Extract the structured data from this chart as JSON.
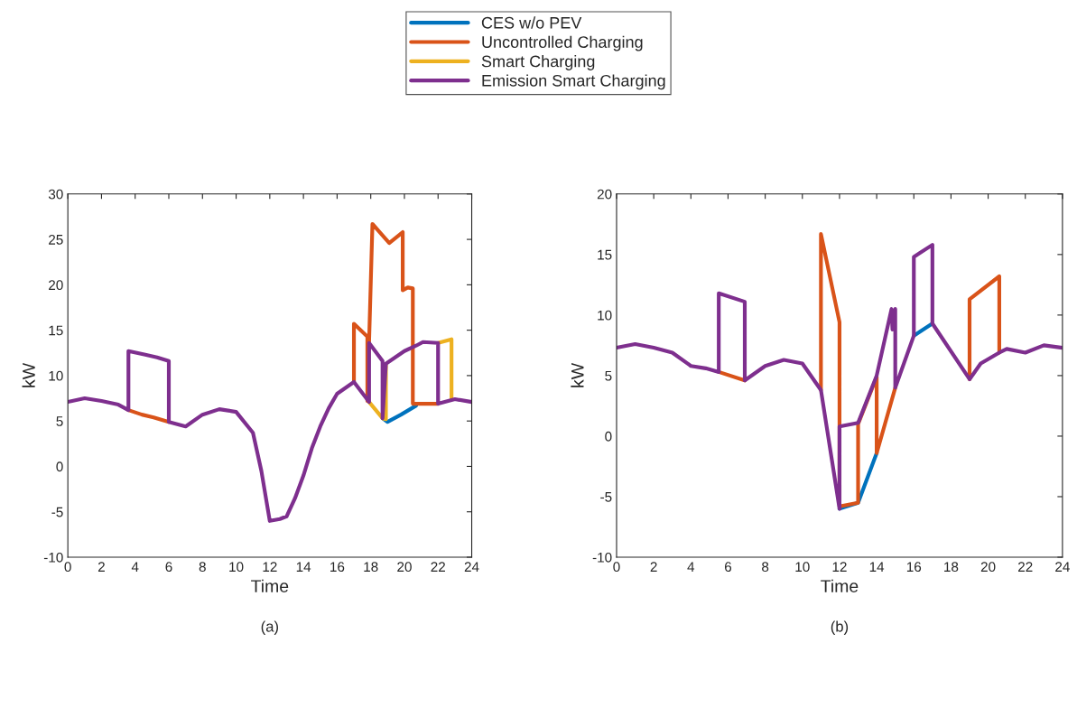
{
  "chart_data": [
    {
      "type": "line",
      "xlabel": "Time",
      "ylabel": "kW",
      "xlim": [
        0,
        24
      ],
      "xticks": [
        0,
        2,
        4,
        6,
        8,
        10,
        12,
        14,
        16,
        18,
        20,
        22,
        24
      ],
      "ylim": [
        -10,
        30
      ],
      "yticks": [
        -10,
        -5,
        0,
        5,
        10,
        15,
        20,
        25,
        30
      ],
      "legend": "top",
      "grid": false,
      "line_style": "solid",
      "annotations": [
        "(a)"
      ],
      "series": [
        {
          "name": "CES w/o PEV",
          "color": "#0072bd",
          "x": [
            18.7,
            19,
            19.8,
            20.7
          ],
          "values": [
            5.3,
            4.9,
            5.7,
            6.7
          ]
        },
        {
          "name": "Uncontrolled Charging",
          "color": "#d95319",
          "x": [
            3.6,
            4.4,
            5.1,
            6
          ],
          "values": [
            6.2,
            5.7,
            5.4,
            4.9
          ]
        },
        {
          "color": "#d95319",
          "x": [
            17,
            17,
            17.8,
            17.8,
            18.1,
            19.1,
            19.9,
            19.9,
            20.2,
            20.5,
            20.5,
            21,
            22
          ],
          "values": [
            9.3,
            15.7,
            14.3,
            7.2,
            26.7,
            24.6,
            25.8,
            19.4,
            19.7,
            19.6,
            6.9,
            6.9,
            6.9
          ]
        },
        {
          "name": "Smart Charging",
          "color": "#edb120",
          "x": [
            17.9,
            18.7,
            18.9,
            18.9
          ],
          "values": [
            7.1,
            5.3,
            5.2,
            11.3
          ]
        },
        {
          "color": "#edb120",
          "x": [
            22,
            22.8,
            22.8
          ],
          "values": [
            13.6,
            14.0,
            7.4
          ]
        },
        {
          "name": "Emission Smart Charging",
          "color": "#7e2f8e",
          "x": [
            0,
            1,
            2,
            3,
            3.6,
            3.6,
            4.6,
            5.3,
            6,
            6,
            7,
            8,
            9,
            10,
            11,
            11.5,
            12,
            12.6,
            13,
            13.5,
            14,
            14.5,
            15,
            15.5,
            16,
            17,
            17.9,
            17.9,
            18.7,
            18.7,
            18.9,
            20,
            20.7,
            21.1,
            22,
            22,
            22.2,
            23,
            24
          ],
          "values": [
            7.1,
            7.5,
            7.2,
            6.8,
            6.2,
            12.7,
            12.3,
            12.0,
            11.6,
            4.9,
            4.4,
            5.7,
            6.3,
            6.0,
            3.7,
            -0.5,
            -6.0,
            -5.8,
            -5.5,
            -3.5,
            -1.0,
            2.0,
            4.4,
            6.4,
            8.0,
            9.3,
            7.1,
            13.6,
            11.6,
            5.3,
            11.3,
            12.7,
            13.3,
            13.7,
            13.6,
            6.9,
            7.0,
            7.4,
            7.1
          ]
        }
      ]
    },
    {
      "type": "line",
      "xlabel": "Time",
      "ylabel": "kW",
      "xlim": [
        0,
        24
      ],
      "xticks": [
        0,
        2,
        4,
        6,
        8,
        10,
        12,
        14,
        16,
        18,
        20,
        22,
        24
      ],
      "ylim": [
        -10,
        20
      ],
      "yticks": [
        -10,
        -5,
        0,
        5,
        10,
        15,
        20
      ],
      "grid": false,
      "line_style": "solid",
      "annotations": [
        "(b)"
      ],
      "series": [
        {
          "color": "#0072bd",
          "x": [
            12,
            13,
            14
          ],
          "values": [
            -6.0,
            -5.5,
            -1.4
          ]
        },
        {
          "color": "#0072bd",
          "x": [
            16,
            17
          ],
          "values": [
            8.3,
            9.3
          ]
        },
        {
          "color": "#d95319",
          "x": [
            5.5,
            6.9
          ],
          "values": [
            5.3,
            4.6
          ]
        },
        {
          "color": "#d95319",
          "x": [
            11,
            11,
            12,
            12,
            13,
            13,
            14,
            14,
            15
          ],
          "values": [
            3.8,
            16.7,
            9.4,
            -5.8,
            -5.5,
            1.0,
            4.9,
            -1.4,
            4.0
          ]
        },
        {
          "color": "#d95319",
          "x": [
            19,
            19,
            20.6,
            20.6
          ],
          "values": [
            4.7,
            11.3,
            13.2,
            6.9
          ]
        },
        {
          "color": "#7e2f8e",
          "x": [
            0,
            1,
            2,
            3,
            4,
            4.8,
            5.5,
            5.5,
            6.9,
            6.9,
            8,
            9,
            10,
            11,
            12,
            12,
            13,
            14,
            14.8,
            14.85,
            15,
            15,
            16,
            16,
            17,
            17,
            19,
            19.6,
            20.6,
            21,
            22,
            23,
            24
          ],
          "values": [
            7.3,
            7.6,
            7.3,
            6.9,
            5.8,
            5.6,
            5.3,
            11.8,
            11.1,
            4.6,
            5.8,
            6.3,
            6.0,
            3.8,
            -6.0,
            0.8,
            1.1,
            5.0,
            10.5,
            8.8,
            10.5,
            4.0,
            8.3,
            14.8,
            15.8,
            9.3,
            4.7,
            6.0,
            6.9,
            7.2,
            6.9,
            7.5,
            7.3
          ]
        }
      ]
    }
  ]
}
